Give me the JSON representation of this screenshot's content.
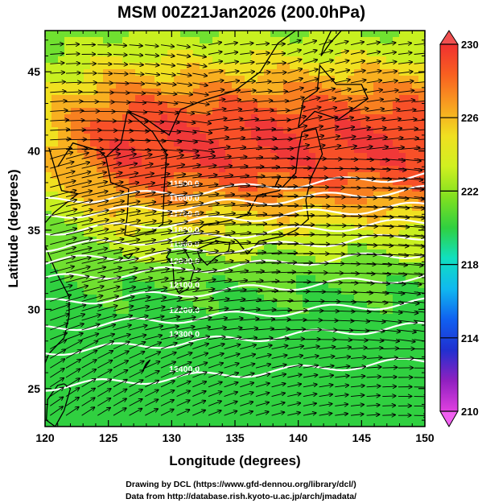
{
  "title": "MSM 00Z21Jan2026 (200.0hPa)",
  "x_axis": {
    "label": "Longitude (degrees)",
    "ticks": [
      "120",
      "125",
      "130",
      "135",
      "140",
      "145",
      "150"
    ],
    "min": 120,
    "max": 150
  },
  "y_axis": {
    "label": "Latitude  (degrees)",
    "ticks": [
      "25",
      "30",
      "35",
      "40",
      "45"
    ],
    "min": 22.6,
    "max": 47.6
  },
  "colorbar": {
    "min": 210,
    "max": 230,
    "ticks": [
      "230",
      "226",
      "222",
      "218",
      "214",
      "210"
    ],
    "colors": [
      "#e040e0",
      "#9020c0",
      "#2030d0",
      "#1060f0",
      "#10b8f0",
      "#10e0c0",
      "#30d040",
      "#80e020",
      "#d0f020",
      "#f0e020",
      "#f8a020",
      "#f86020",
      "#f03030"
    ]
  },
  "contours": {
    "labels": [
      "11500.0",
      "11600.0",
      "11700.0",
      "11800.0",
      "11900.0",
      "12000.0",
      "12100.0",
      "12200.0",
      "12300.0",
      "12400.0"
    ],
    "color": "#ffffff"
  },
  "footer": {
    "line1": "Drawing by DCL (https://www.gfd-dennou.org/library/dcl/)",
    "line2": "Data from http://database.rish.kyoto-u.ac.jp/arch/jmadata/"
  }
}
